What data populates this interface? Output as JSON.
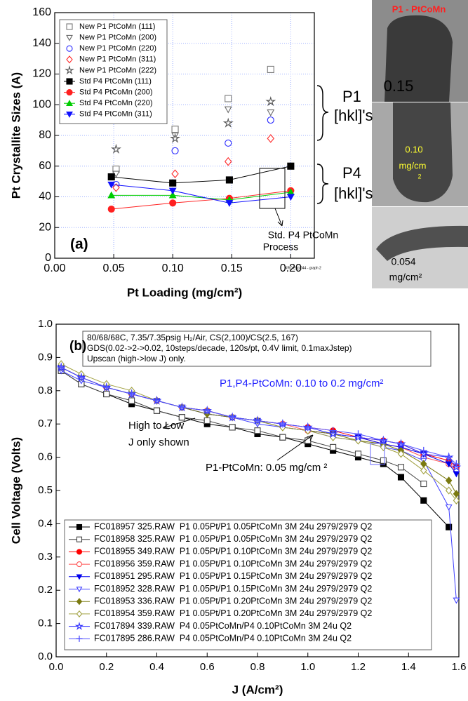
{
  "chart_data": [
    {
      "type": "scatter",
      "xlabel": "Pt Loading (mg/cm²)",
      "ylabel": "Pt Crystallite Sizes (A)",
      "xlim": [
        0,
        0.22
      ],
      "ylim": [
        0,
        160
      ],
      "xticks": [
        {
          "value": 0,
          "label": "0.00"
        },
        {
          "value": 0.05,
          "label": "0.05"
        },
        {
          "value": 0.1,
          "label": "0.10"
        },
        {
          "value": 0.15,
          "label": "0.15"
        },
        {
          "value": 0.2,
          "label": "0.20"
        }
      ],
      "yticks": [
        0,
        20,
        40,
        60,
        80,
        100,
        120,
        140,
        160
      ],
      "grid": true,
      "legend": "upper left",
      "series": [
        {
          "name": "New P1 PtCoMn (111)",
          "color": "#7a7a7a",
          "marker": "square",
          "filled": false,
          "x": [
            0.052,
            0.102,
            0.147,
            0.183
          ],
          "values": [
            58,
            84,
            104,
            123
          ]
        },
        {
          "name": "New P1 PtCoMn (200)",
          "color": "#6a6a6a",
          "marker": "tri_down",
          "filled": false,
          "x": [
            0.052,
            0.102,
            0.147,
            0.183
          ],
          "values": [
            55,
            80,
            97,
            95
          ]
        },
        {
          "name": "New P1 PtCoMn (220)",
          "color": "#2a2aff",
          "marker": "circle",
          "filled": false,
          "x": [
            0.052,
            0.102,
            0.147,
            0.183
          ],
          "values": [
            48,
            70,
            75,
            90
          ]
        },
        {
          "name": "New P1 PtCoMn (311)",
          "color": "#ff2a2a",
          "marker": "diamond",
          "filled": false,
          "x": [
            0.052,
            0.102,
            0.147,
            0.183
          ],
          "values": [
            46,
            55,
            63,
            78
          ]
        },
        {
          "name": "New P1 PtCoMn (222)",
          "color": "#555555",
          "marker": "star",
          "filled": false,
          "x": [
            0.052,
            0.102,
            0.147,
            0.183
          ],
          "values": [
            71,
            78,
            88,
            102
          ]
        },
        {
          "name": "Std P4 PtCoMn (111)",
          "color": "#000000",
          "marker": "square",
          "filled": true,
          "line": true,
          "x": [
            0.048,
            0.1,
            0.148,
            0.2
          ],
          "values": [
            53,
            49,
            51,
            60
          ]
        },
        {
          "name": "Std P4 PtCoMn (200)",
          "color": "#ff2020",
          "marker": "circle",
          "filled": true,
          "line": true,
          "x": [
            0.048,
            0.1,
            0.148,
            0.2
          ],
          "values": [
            32,
            36,
            39,
            44
          ]
        },
        {
          "name": "Std P4 PtCoMn (220)",
          "color": "#00cc00",
          "marker": "tri_up",
          "filled": true,
          "line": true,
          "x": [
            0.048,
            0.1,
            0.148,
            0.2
          ],
          "values": [
            41,
            41,
            38,
            43
          ]
        },
        {
          "name": "Std P4 PtCoMn (311)",
          "color": "#1010ff",
          "marker": "tri_down",
          "filled": true,
          "line": true,
          "x": [
            0.048,
            0.1,
            0.148,
            0.2
          ],
          "values": [
            48,
            44,
            36,
            40
          ]
        }
      ],
      "annotations": [
        "(a)",
        "P1",
        "[hkl]'s",
        "P4",
        "[hkl]'s",
        "Std. P4 PtCoMn",
        "Process",
        "XRD Exp 044 - graph 2",
        "P1 - PtCoMn",
        "0.15",
        "0.10",
        "mg/cm",
        "2",
        "0.054",
        "mg/cm²"
      ]
    },
    {
      "type": "line",
      "xlabel": "J (A/cm²)",
      "ylabel": "Cell Voltage (Volts)",
      "xlim": [
        0,
        1.6
      ],
      "ylim": [
        0,
        1.0
      ],
      "xticks": [
        {
          "value": 0,
          "label": "0.0"
        },
        0.2,
        0.4,
        0.6,
        0.8,
        {
          "value": 1,
          "label": "1.0"
        },
        1.2,
        1.4,
        1.6
      ],
      "yticks": [
        {
          "value": 0,
          "label": "0.0"
        },
        0.1,
        0.2,
        0.3,
        0.4,
        0.5,
        0.6,
        0.7,
        0.8,
        0.9,
        {
          "value": 1,
          "label": "1.0"
        }
      ],
      "grid": false,
      "legend": "lower left",
      "x": [
        0.02,
        0.1,
        0.2,
        0.3,
        0.4,
        0.5,
        0.6,
        0.7,
        0.8,
        0.9,
        1.0,
        1.1,
        1.2,
        1.3,
        1.37,
        1.46,
        1.56,
        1.59
      ],
      "series": [
        {
          "name": "FC018957 325.RAW  P1 0.05Pt/P1 0.05PtCoMn 3M 24u 2979/2979 Q2",
          "color": "#000000",
          "marker": "square",
          "filled": true,
          "values": [
            0.86,
            0.82,
            0.79,
            0.76,
            0.74,
            0.72,
            0.7,
            0.69,
            0.67,
            0.66,
            0.64,
            0.62,
            0.6,
            0.58,
            0.54,
            0.47,
            0.39,
            null
          ]
        },
        {
          "name": "FC018958 325.RAW  P1 0.05Pt/P1 0.05PtCoMn 3M 24u 2979/2979 Q2",
          "color": "#444444",
          "marker": "square",
          "filled": false,
          "values": [
            0.86,
            0.82,
            0.79,
            0.77,
            0.74,
            0.72,
            0.71,
            0.69,
            0.68,
            0.66,
            0.65,
            0.63,
            0.61,
            0.59,
            0.57,
            0.52,
            null,
            null
          ]
        },
        {
          "name": "FC018955 349.RAW  P1 0.05Pt/P1 0.10PtCoMn 3M 24u 2979/2979 Q2",
          "color": "#ff0000",
          "marker": "circle",
          "filled": true,
          "values": [
            0.87,
            0.84,
            0.81,
            0.79,
            0.77,
            0.75,
            0.74,
            0.72,
            0.71,
            0.7,
            0.69,
            0.68,
            0.66,
            0.65,
            0.64,
            0.61,
            0.59,
            0.57
          ]
        },
        {
          "name": "FC018956 359.RAW  P1 0.05Pt/P1 0.10PtCoMn 3M 24u 2979/2979 Q2",
          "color": "#ff5050",
          "marker": "circle",
          "filled": false,
          "values": [
            0.87,
            0.84,
            0.81,
            0.79,
            0.77,
            0.75,
            0.74,
            0.72,
            0.71,
            0.7,
            0.68,
            0.67,
            0.66,
            0.64,
            0.63,
            0.6,
            0.58,
            0.56
          ]
        },
        {
          "name": "FC018951 295.RAW  P1 0.05Pt/P1 0.15PtCoMn 3M 24u 2979/2979 Q2",
          "color": "#0000ee",
          "marker": "tri_down",
          "filled": true,
          "values": [
            0.87,
            0.84,
            0.81,
            0.79,
            0.77,
            0.75,
            0.73,
            0.72,
            0.71,
            0.69,
            0.68,
            0.67,
            0.66,
            0.64,
            0.63,
            0.61,
            0.58,
            0.55
          ]
        },
        {
          "name": "FC018952 328.RAW  P1 0.05Pt/P1 0.15PtCoMn 3M 24u 2979/2979 Q2",
          "color": "#4040ff",
          "marker": "tri_down",
          "filled": false,
          "values": [
            0.86,
            0.83,
            0.81,
            0.79,
            0.77,
            0.75,
            0.73,
            0.72,
            0.7,
            0.69,
            0.68,
            0.66,
            0.65,
            0.63,
            0.62,
            0.59,
            0.45,
            0.17
          ]
        },
        {
          "name": "FC018953 336.RAW  P1 0.05Pt/P1 0.20PtCoMn 3M 24u 2979/2979 Q2",
          "color": "#7a7a10",
          "marker": "diamond",
          "filled": true,
          "values": [
            0.87,
            0.84,
            0.81,
            0.79,
            0.77,
            0.75,
            0.73,
            0.72,
            0.71,
            0.69,
            0.68,
            0.67,
            0.65,
            0.64,
            0.62,
            0.58,
            0.53,
            0.49
          ]
        },
        {
          "name": "FC018954 359.RAW  P1 0.05Pt/P1 0.20PtCoMn 3M 24u 2979/2979 Q2",
          "color": "#a0a040",
          "marker": "diamond",
          "filled": false,
          "values": [
            0.88,
            0.85,
            0.82,
            0.8,
            0.77,
            0.75,
            0.74,
            0.72,
            0.71,
            0.69,
            0.68,
            0.66,
            0.65,
            0.63,
            0.61,
            0.56,
            0.5,
            0.47
          ]
        },
        {
          "name": "FC017894 339.RAW  P4 0.05PtCoMn/P4 0.10PtCoMn 3M 24u Q2",
          "color": "#3030ff",
          "marker": "star",
          "filled": false,
          "values": [
            0.87,
            0.84,
            0.81,
            0.79,
            0.77,
            0.75,
            0.74,
            0.72,
            0.71,
            0.7,
            0.69,
            0.67,
            0.66,
            0.65,
            0.64,
            0.61,
            0.6,
            0.57
          ]
        },
        {
          "name": "FC017895 286.RAW  P4 0.05PtCoMn/P4 0.10PtCoMn 3M 24u Q2",
          "color": "#5050ff",
          "marker": "cross",
          "filled": true,
          "values": [
            0.87,
            0.84,
            0.81,
            0.79,
            0.77,
            0.75,
            0.74,
            0.72,
            0.71,
            0.7,
            0.69,
            0.68,
            0.67,
            0.65,
            0.64,
            0.62,
            0.6,
            0.58
          ]
        }
      ],
      "annotations": [
        "(b)",
        "80/68/68C, 7.35/7.35psig H₂/Air, CS(2,100)/CS(2.5, 167)",
        "GDS(0.02->2->0.02, 10steps/decade, 120s/pt, 0.4V limit, 0.1maxJstep)",
        "Upscan (high->low J) only.",
        "P1,P4-PtCoMn: 0.10 to 0.2 mg/cm²",
        "High to Low",
        "J only shown",
        "P1-PtCoMn: 0.05 mg/cm ²"
      ]
    }
  ]
}
